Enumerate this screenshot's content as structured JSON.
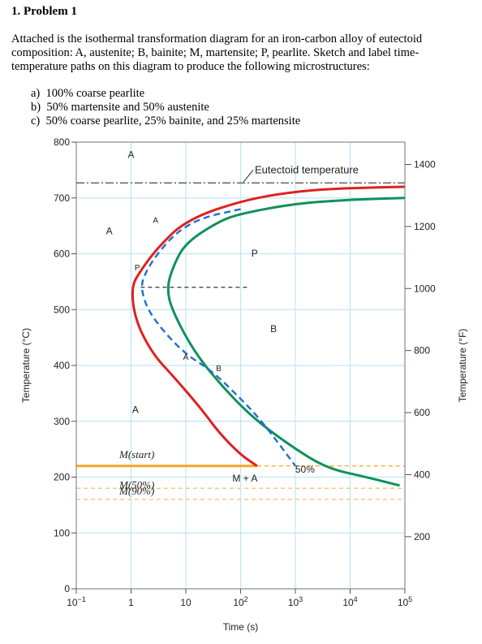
{
  "heading": "1.  Problem 1",
  "intro": "Attached is the isothermal transformation diagram for an iron-carbon alloy of eutectoid composition: A, austenite; B, bainite; M, martensite; P, pearlite. Sketch and label time-temperature paths on this diagram to produce the following microstructures:",
  "questions": [
    {
      "letter": "a)",
      "text": "100% coarse pearlite"
    },
    {
      "letter": "b)",
      "text": "50% martensite and 50% austenite"
    },
    {
      "letter": "c)",
      "text": "50% coarse pearlite, 25% bainite, and 25% martensite"
    }
  ],
  "chart_data": {
    "type": "line",
    "xlabel": "Time (s)",
    "ylabel_left": "Temperature (°C)",
    "ylabel_right": "Temperature (°F)",
    "x_scale": "log",
    "xlim": [
      0.1,
      100000
    ],
    "ylim": [
      0,
      800
    ],
    "x_ticks": [
      "10",
      "1",
      "10",
      "10",
      "10",
      "10",
      "10"
    ],
    "x_tick_exponents": [
      "−1",
      "",
      "",
      "2",
      "3",
      "4",
      "5"
    ],
    "x_tick_values": [
      0.1,
      1,
      10,
      100,
      1000,
      10000,
      100000
    ],
    "y_ticks": [
      "0",
      "100",
      "200",
      "300",
      "400",
      "500",
      "600",
      "700",
      "800"
    ],
    "y_right_ticks": [
      "200",
      "400",
      "600",
      "800",
      "1000",
      "1200",
      "1400"
    ],
    "y_right_tick_values_F": [
      200,
      400,
      600,
      800,
      1000,
      1200,
      1400
    ],
    "eutectoid_label": "Eutectoid temperature",
    "eutectoid_temp_C": 727,
    "region_labels": {
      "A_top": "A",
      "A_upper_left": "A",
      "P": "P",
      "B": "B",
      "A_lower": "A",
      "M_plus_A": "M + A",
      "pct50": "50%",
      "path_A": "A",
      "path_P": "P",
      "path_A2": "A",
      "path_B": "B"
    },
    "martensite_lines": [
      {
        "label": "M(start)",
        "temp_C": 220,
        "color": "#f5a623"
      },
      {
        "label": "M(50%)",
        "temp_C": 180,
        "color": "#f5c060"
      },
      {
        "label": "M(90%)",
        "temp_C": 160,
        "color": "#f5c060"
      }
    ],
    "series": [
      {
        "color": "#e02020",
        "x": [
          100000,
          10000,
          1000,
          100,
          10,
          3,
          1.5,
          1.0,
          1.2,
          2.5,
          6,
          20,
          40,
          100,
          200
        ],
        "y": [
          720,
          718,
          712,
          695,
          660,
          610,
          570,
          540,
          480,
          420,
          380,
          320,
          280,
          240,
          220
        ]
      },
      {
        "color": "#10905a",
        "x": [
          100000,
          10000,
          1000,
          100,
          40,
          10,
          6,
          4.5,
          5.5,
          15,
          60,
          200,
          1000,
          4000,
          20000,
          80000
        ],
        "y": [
          700,
          697,
          690,
          672,
          658,
          620,
          580,
          540,
          500,
          420,
          350,
          300,
          250,
          215,
          200,
          185
        ]
      },
      {
        "color": "#1f6fd0",
        "x": [
          100,
          20,
          7,
          3,
          1.8,
          1.5,
          2.0,
          4,
          10,
          30,
          80,
          200,
          500,
          1000
        ],
        "y": [
          680,
          665,
          640,
          600,
          565,
          540,
          500,
          460,
          420,
          390,
          350,
          310,
          260,
          220
        ]
      }
    ],
    "grid": true
  }
}
